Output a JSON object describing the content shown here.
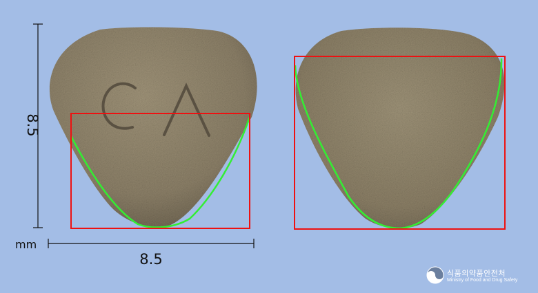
{
  "dimensions": {
    "height_label": "8.5",
    "width_label": "8.5",
    "unit_label": "mm"
  },
  "tablet": {
    "front_imprint": "CA",
    "color": "#8f836c",
    "outline_color": "#33ee33",
    "bbox_color": "#ee1111"
  },
  "brand": {
    "korean_name": "식품의약품안전처",
    "english_name": "Ministry of Food and Drug Safety"
  }
}
